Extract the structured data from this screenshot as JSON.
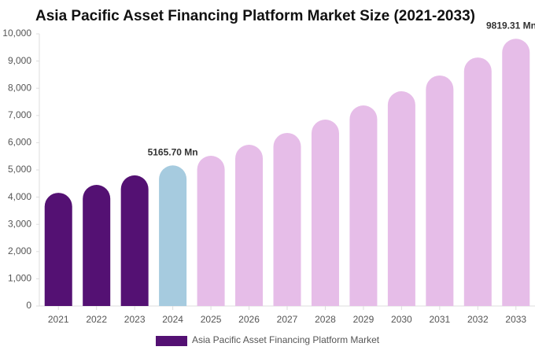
{
  "chart_data": {
    "type": "bar",
    "title": "Asia Pacific Asset Financing Platform Market Size (2021-2033)",
    "categories": [
      "2021",
      "2022",
      "2023",
      "2024",
      "2025",
      "2026",
      "2027",
      "2028",
      "2029",
      "2030",
      "2031",
      "2032",
      "2033"
    ],
    "series": [
      {
        "name": "Asia Pacific Asset Financing Platform Market",
        "color": "#541173",
        "values": [
          4160,
          4450,
          4800,
          5165.7,
          5520,
          5925,
          6360,
          6850,
          7370,
          7890,
          8470,
          9130,
          9819.31
        ],
        "value_labels": [
          null,
          null,
          null,
          "5165.70 Mn",
          null,
          null,
          null,
          null,
          null,
          null,
          null,
          null,
          "9819.31 Mn"
        ],
        "colors": [
          "#541173",
          "#541173",
          "#541173",
          "#a6cbdf",
          "#e6bde8",
          "#e6bde8",
          "#e6bde8",
          "#e6bde8",
          "#e6bde8",
          "#e6bde8",
          "#e6bde8",
          "#e6bde8",
          "#e6bde8"
        ]
      }
    ],
    "ylim": [
      0,
      10000
    ],
    "yticks": [
      0,
      {
        "value": 1000,
        "label": "1,000"
      },
      {
        "value": 2000,
        "label": "2,000"
      },
      {
        "value": 3000,
        "label": "3,000"
      },
      {
        "value": 4000,
        "label": "4,000"
      },
      {
        "value": 5000,
        "label": "5,000"
      },
      {
        "value": 6000,
        "label": "6,000"
      },
      {
        "value": 7000,
        "label": "7,000"
      },
      {
        "value": 8000,
        "label": "8,000"
      },
      {
        "value": 9000,
        "label": "9,000"
      },
      {
        "value": 10000,
        "label": "10,000"
      }
    ],
    "grid": false
  }
}
